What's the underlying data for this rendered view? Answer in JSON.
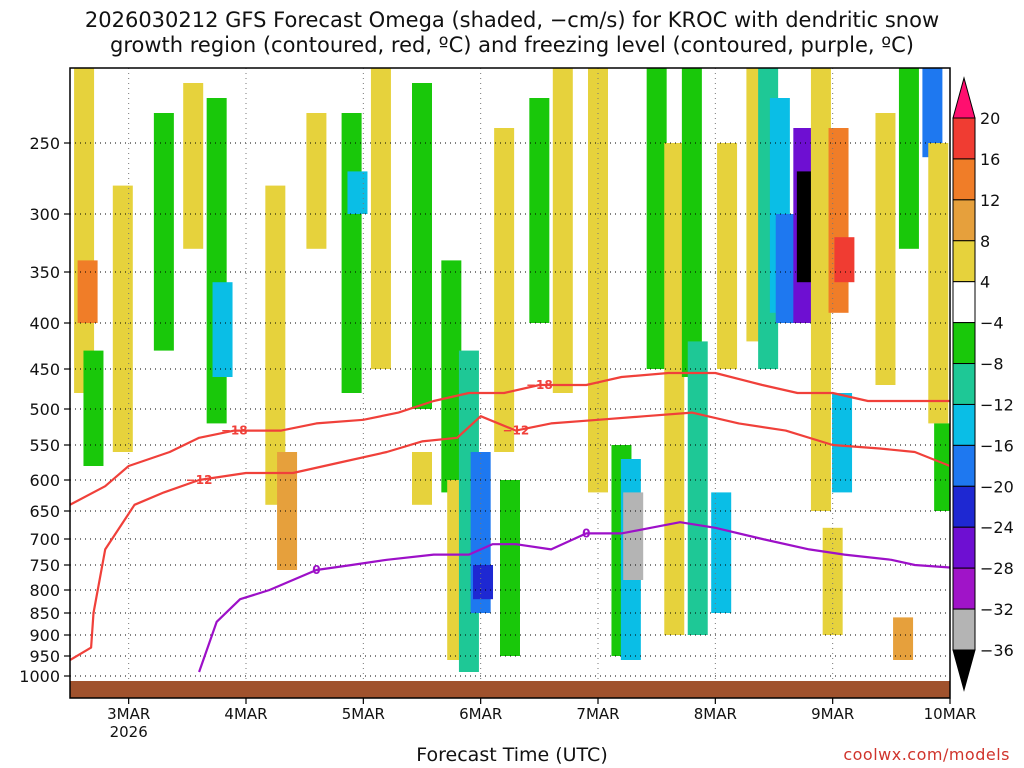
{
  "title_line1": "2026030212 GFS Forecast Omega (shaded, −cm/s) for KROC with dendritic snow",
  "title_line2": "growth region (contoured, red, ºC) and freezing level (contoured, purple, ºC)",
  "credit": "coolwx.com/models",
  "chart_data": {
    "type": "heatmap",
    "xlabel": "Forecast Time (UTC)",
    "ylabel": "",
    "x_ticks": [
      {
        "label": "3MAR",
        "sub": "2026",
        "t": 1
      },
      {
        "label": "4MAR",
        "sub": "",
        "t": 2
      },
      {
        "label": "5MAR",
        "sub": "",
        "t": 3
      },
      {
        "label": "6MAR",
        "sub": "",
        "t": 4
      },
      {
        "label": "7MAR",
        "sub": "",
        "t": 5
      },
      {
        "label": "8MAR",
        "sub": "",
        "t": 6
      },
      {
        "label": "9MAR",
        "sub": "",
        "t": 7
      },
      {
        "label": "10MAR",
        "sub": "",
        "t": 8
      }
    ],
    "x_range_days": [
      0.5,
      8.0
    ],
    "y_axis_hpa": [
      250,
      300,
      350,
      400,
      450,
      500,
      550,
      600,
      650,
      700,
      750,
      800,
      850,
      900,
      950,
      1000
    ],
    "y_tick_labels": [
      "250",
      "300",
      "350",
      "400",
      "450",
      "500",
      "550",
      "600",
      "650",
      "700",
      "750",
      "800",
      "850",
      "900",
      "950",
      "1000"
    ],
    "colorbar": {
      "labels": [
        "20",
        "16",
        "12",
        "8",
        "4",
        "−4",
        "−8",
        "−12",
        "−16",
        "−20",
        "−24",
        "−28",
        "−32",
        "−36"
      ],
      "colors": [
        "#ff0f6f",
        "#f03c32",
        "#f07d28",
        "#e6a03c",
        "#e6d23c",
        "#ffffff",
        "#19c80a",
        "#1ec896",
        "#0abee6",
        "#1e78f0",
        "#1e28d2",
        "#6e0fd2",
        "#a014c8",
        "#b4b4b4",
        "#000000"
      ]
    },
    "shaded_cells": [
      {
        "t": 0.62,
        "p0": 200,
        "p1": 480,
        "v": 6
      },
      {
        "t": 0.65,
        "p0": 340,
        "p1": 400,
        "v": 14
      },
      {
        "t": 0.7,
        "p0": 430,
        "p1": 580,
        "v": -6
      },
      {
        "t": 0.95,
        "p0": 280,
        "p1": 560,
        "v": 6
      },
      {
        "t": 1.3,
        "p0": 230,
        "p1": 430,
        "v": -6
      },
      {
        "t": 1.55,
        "p0": 210,
        "p1": 330,
        "v": 6
      },
      {
        "t": 1.75,
        "p0": 220,
        "p1": 520,
        "v": -6
      },
      {
        "t": 1.8,
        "p0": 360,
        "p1": 460,
        "v": -12
      },
      {
        "t": 2.25,
        "p0": 280,
        "p1": 640,
        "v": 6
      },
      {
        "t": 2.35,
        "p0": 560,
        "p1": 760,
        "v": 10
      },
      {
        "t": 2.6,
        "p0": 230,
        "p1": 330,
        "v": 6
      },
      {
        "t": 2.9,
        "p0": 230,
        "p1": 480,
        "v": -6
      },
      {
        "t": 2.95,
        "p0": 270,
        "p1": 300,
        "v": -14
      },
      {
        "t": 3.15,
        "p0": 200,
        "p1": 450,
        "v": 6
      },
      {
        "t": 3.5,
        "p0": 210,
        "p1": 500,
        "v": -6
      },
      {
        "t": 3.5,
        "p0": 560,
        "p1": 640,
        "v": 6
      },
      {
        "t": 3.75,
        "p0": 340,
        "p1": 620,
        "v": -6
      },
      {
        "t": 3.8,
        "p0": 600,
        "p1": 960,
        "v": 6
      },
      {
        "t": 3.9,
        "p0": 430,
        "p1": 990,
        "v": -10
      },
      {
        "t": 4.0,
        "p0": 560,
        "p1": 850,
        "v": -16
      },
      {
        "t": 4.02,
        "p0": 750,
        "p1": 820,
        "v": -22
      },
      {
        "t": 4.2,
        "p0": 240,
        "p1": 560,
        "v": 6
      },
      {
        "t": 4.25,
        "p0": 600,
        "p1": 950,
        "v": -6
      },
      {
        "t": 4.5,
        "p0": 220,
        "p1": 400,
        "v": -6
      },
      {
        "t": 4.7,
        "p0": 200,
        "p1": 480,
        "v": 6
      },
      {
        "t": 5.0,
        "p0": 200,
        "p1": 620,
        "v": 6
      },
      {
        "t": 5.2,
        "p0": 550,
        "p1": 950,
        "v": -6
      },
      {
        "t": 5.28,
        "p0": 570,
        "p1": 960,
        "v": -14
      },
      {
        "t": 5.3,
        "p0": 620,
        "p1": 780,
        "v": -34
      },
      {
        "t": 5.5,
        "p0": 200,
        "p1": 450,
        "v": -6
      },
      {
        "t": 5.65,
        "p0": 250,
        "p1": 900,
        "v": 6
      },
      {
        "t": 5.8,
        "p0": 200,
        "p1": 460,
        "v": -6
      },
      {
        "t": 5.85,
        "p0": 420,
        "p1": 900,
        "v": -8
      },
      {
        "t": 6.05,
        "p0": 620,
        "p1": 850,
        "v": -14
      },
      {
        "t": 6.1,
        "p0": 250,
        "p1": 450,
        "v": 6
      },
      {
        "t": 6.35,
        "p0": 200,
        "p1": 420,
        "v": 6
      },
      {
        "t": 6.45,
        "p0": 200,
        "p1": 450,
        "v": -10
      },
      {
        "t": 6.55,
        "p0": 220,
        "p1": 390,
        "v": -14
      },
      {
        "t": 6.6,
        "p0": 300,
        "p1": 400,
        "v": -18
      },
      {
        "t": 6.75,
        "p0": 240,
        "p1": 400,
        "v": -26
      },
      {
        "t": 6.78,
        "p0": 270,
        "p1": 360,
        "v": -40
      },
      {
        "t": 6.9,
        "p0": 200,
        "p1": 650,
        "v": 6
      },
      {
        "t": 7.0,
        "p0": 680,
        "p1": 900,
        "v": 6
      },
      {
        "t": 7.05,
        "p0": 240,
        "p1": 390,
        "v": 14
      },
      {
        "t": 7.1,
        "p0": 320,
        "p1": 360,
        "v": 18
      },
      {
        "t": 7.08,
        "p0": 480,
        "p1": 620,
        "v": -14
      },
      {
        "t": 7.45,
        "p0": 230,
        "p1": 470,
        "v": 6
      },
      {
        "t": 7.65,
        "p0": 200,
        "p1": 330,
        "v": -6
      },
      {
        "t": 7.6,
        "p0": 860,
        "p1": 960,
        "v": 8
      },
      {
        "t": 7.85,
        "p0": 200,
        "p1": 260,
        "v": -16
      },
      {
        "t": 7.9,
        "p0": 250,
        "p1": 520,
        "v": 6
      },
      {
        "t": 7.95,
        "p0": 520,
        "p1": 650,
        "v": -6
      }
    ],
    "dgz_contours": [
      {
        "label": "−18",
        "points": [
          [
            0.5,
            640
          ],
          [
            0.8,
            610
          ],
          [
            1.0,
            580
          ],
          [
            1.35,
            560
          ],
          [
            1.6,
            540
          ],
          [
            1.9,
            530
          ],
          [
            2.3,
            530
          ],
          [
            2.6,
            520
          ],
          [
            3.0,
            515
          ],
          [
            3.3,
            505
          ],
          [
            3.6,
            490
          ],
          [
            3.9,
            480
          ],
          [
            4.2,
            480
          ],
          [
            4.5,
            470
          ],
          [
            4.9,
            470
          ],
          [
            5.2,
            460
          ],
          [
            5.6,
            455
          ],
          [
            6.0,
            455
          ],
          [
            6.4,
            470
          ],
          [
            6.7,
            480
          ],
          [
            7.0,
            480
          ],
          [
            7.3,
            490
          ],
          [
            7.7,
            490
          ],
          [
            8.0,
            490
          ]
        ]
      },
      {
        "label": "−12",
        "points": [
          [
            0.5,
            960
          ],
          [
            0.68,
            930
          ],
          [
            0.7,
            850
          ],
          [
            0.8,
            720
          ],
          [
            1.05,
            640
          ],
          [
            1.3,
            620
          ],
          [
            1.6,
            600
          ],
          [
            2.0,
            590
          ],
          [
            2.4,
            590
          ],
          [
            2.8,
            575
          ],
          [
            3.2,
            560
          ],
          [
            3.5,
            545
          ],
          [
            3.8,
            540
          ],
          [
            4.0,
            510
          ],
          [
            4.3,
            530
          ],
          [
            4.6,
            520
          ],
          [
            5.0,
            515
          ],
          [
            5.4,
            510
          ],
          [
            5.8,
            505
          ],
          [
            6.2,
            520
          ],
          [
            6.6,
            530
          ],
          [
            7.0,
            550
          ],
          [
            7.4,
            555
          ],
          [
            7.7,
            560
          ],
          [
            8.0,
            580
          ]
        ]
      }
    ],
    "freezing_contours": [
      {
        "label": "0",
        "points": [
          [
            1.6,
            990
          ],
          [
            1.75,
            870
          ],
          [
            1.95,
            820
          ],
          [
            2.2,
            800
          ],
          [
            2.4,
            780
          ],
          [
            2.6,
            760
          ],
          [
            2.9,
            750
          ],
          [
            3.2,
            740
          ],
          [
            3.6,
            730
          ],
          [
            3.9,
            730
          ],
          [
            4.1,
            710
          ],
          [
            4.3,
            710
          ],
          [
            4.6,
            720
          ],
          [
            4.9,
            690
          ],
          [
            5.2,
            690
          ],
          [
            5.45,
            680
          ],
          [
            5.7,
            670
          ],
          [
            6.0,
            680
          ],
          [
            6.4,
            700
          ],
          [
            6.8,
            720
          ],
          [
            7.1,
            730
          ],
          [
            7.5,
            740
          ],
          [
            7.7,
            750
          ],
          [
            8.0,
            755
          ]
        ]
      }
    ]
  }
}
